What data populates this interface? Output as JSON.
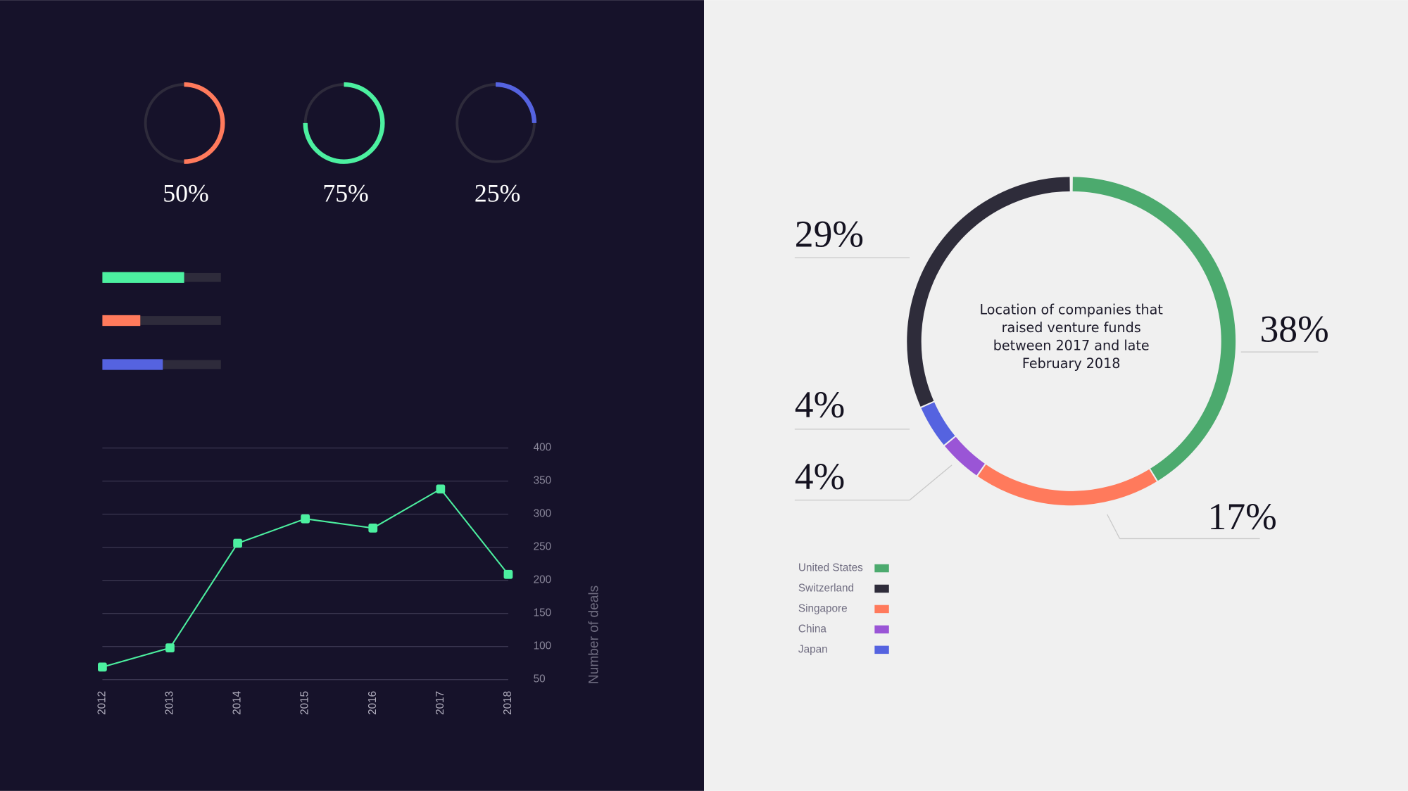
{
  "chart_data": [
    {
      "type": "gauge",
      "values": [
        50,
        75,
        25
      ],
      "value_labels": [
        "50%",
        "75%",
        "25%"
      ],
      "colors": [
        "#ff7a5c",
        "#4cf0a0",
        "#5563e0"
      ],
      "ylim": [
        0,
        100
      ]
    },
    {
      "type": "hbar",
      "values": [
        69,
        32,
        51
      ],
      "colors": [
        "#4cf0a0",
        "#ff7a5c",
        "#5563e0"
      ],
      "xlim": [
        0,
        100
      ]
    },
    {
      "type": "line",
      "categories": [
        "2012",
        "2013",
        "2014",
        "2015",
        "2016",
        "2017",
        "2018"
      ],
      "values": [
        69,
        98,
        256,
        293,
        279,
        338,
        209
      ],
      "color": "#4cf0a0",
      "ylim": [
        50,
        400
      ],
      "yticks": [
        50,
        100,
        150,
        200,
        250,
        300,
        350,
        400
      ],
      "grid": true,
      "y_label": "Number of deals"
    },
    {
      "type": "donut",
      "title": "Location of companies that raised venture funds between 2017 and late February 2018",
      "categories": [
        "United States",
        "Switzerland",
        "Singapore",
        "China",
        "Japan"
      ],
      "values": [
        38,
        29,
        17,
        4,
        4
      ],
      "value_labels": [
        "38%",
        "29%",
        "17%",
        "4%",
        "4%"
      ],
      "colors": [
        "#4caa6e",
        "#2e2c3a",
        "#ff7a5c",
        "#9a55d6",
        "#5563e0"
      ]
    }
  ]
}
